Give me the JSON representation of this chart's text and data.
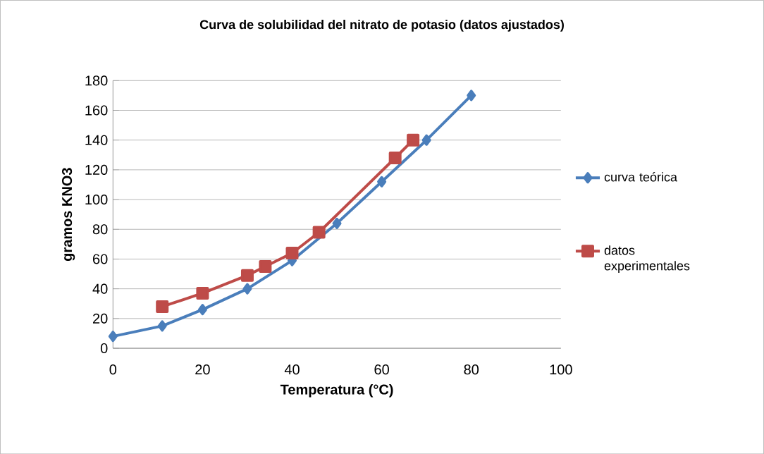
{
  "chart_data": {
    "type": "line",
    "title": "Curva de solubilidad del nitrato de potasio (datos ajustados)",
    "xlabel": "Temperatura (°C)",
    "ylabel": "gramos KNO3",
    "series": [
      {
        "name": "curva teórica",
        "color": "#4a7ebb",
        "marker": "diamond",
        "x": [
          0,
          11,
          20,
          30,
          40,
          50,
          60,
          70,
          80
        ],
        "values": [
          8,
          15,
          26,
          40,
          59,
          84,
          112,
          140,
          170
        ]
      },
      {
        "name": "datos experimentales",
        "color": "#be4b48",
        "marker": "square",
        "x": [
          11,
          20,
          30,
          34,
          40,
          46,
          63,
          67
        ],
        "values": [
          28,
          37,
          49,
          55,
          64,
          78,
          128,
          140
        ]
      }
    ],
    "xlim": [
      0,
      100
    ],
    "xticks": [
      0,
      20,
      40,
      60,
      80,
      100
    ],
    "ylim": [
      0,
      180
    ],
    "yticks": [
      0,
      20,
      40,
      60,
      80,
      100,
      120,
      140,
      160,
      180
    ],
    "grid": "y",
    "legend": "right",
    "line_style": "solid"
  }
}
